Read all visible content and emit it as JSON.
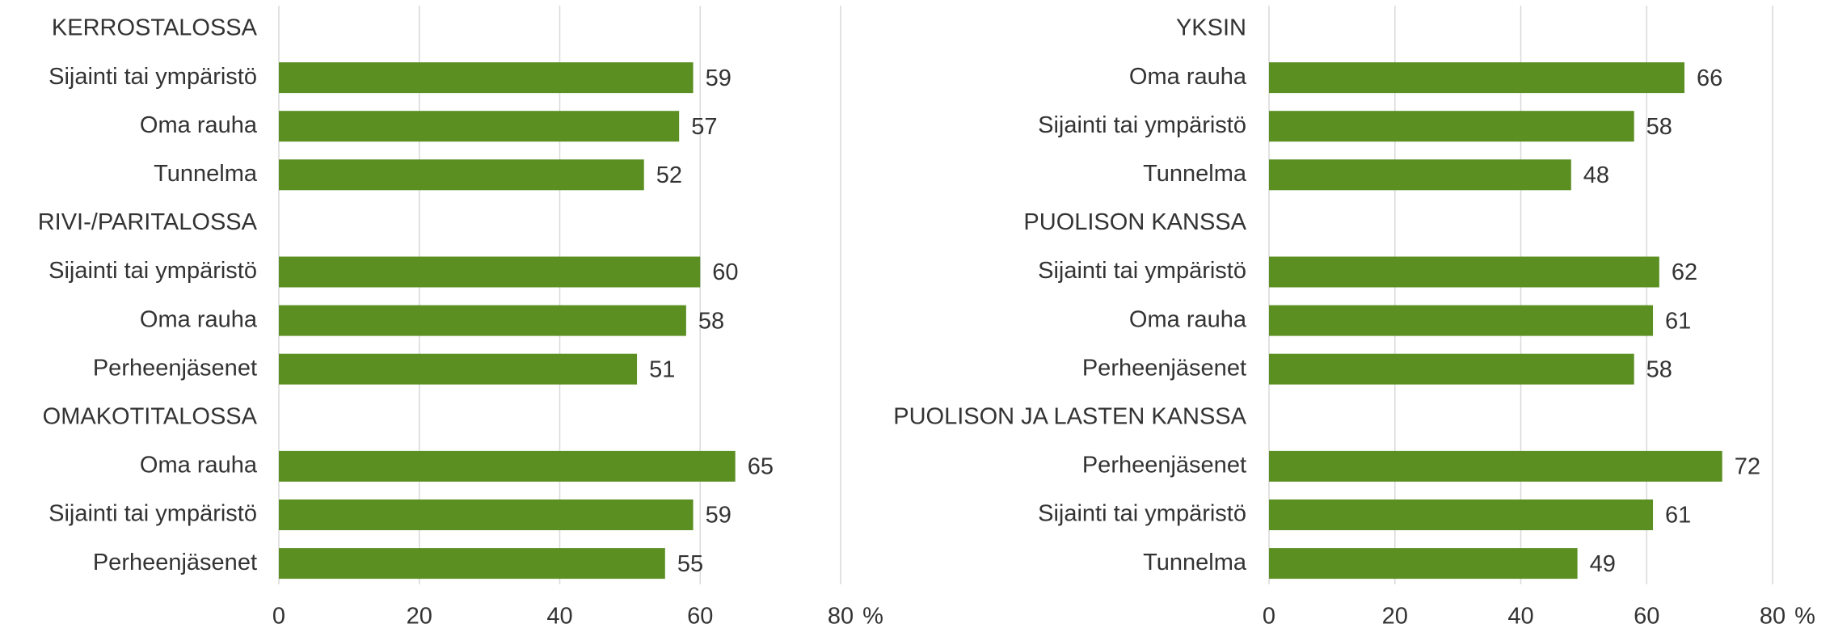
{
  "chart_data": [
    {
      "type": "barh",
      "categories": [
        "KERROSTALOSSA",
        "Sijainti tai ympäristö",
        "Oma rauha",
        "Tunnelma",
        "RIVI-/PARITALOSSA",
        "Sijainti tai ympäristö",
        "Oma rauha",
        "Perheenjäsenet",
        "OMAKOTITALOSSA",
        "Oma rauha",
        "Sijainti tai ympäristö",
        "Perheenjäsenet"
      ],
      "values": [
        null,
        59,
        57,
        52,
        null,
        60,
        58,
        51,
        null,
        65,
        59,
        55
      ],
      "color": "#5b8f22",
      "xlim": [
        0,
        80
      ],
      "xticks": [
        0,
        20,
        40,
        60,
        80
      ],
      "xlabel": "%",
      "grid": true
    },
    {
      "type": "barh",
      "categories": [
        "YKSIN",
        "Oma rauha",
        "Sijainti tai ympäristö",
        "Tunnelma",
        "PUOLISON KANSSA",
        "Sijainti tai ympäristö",
        "Oma rauha",
        "Perheenjäsenet",
        "PUOLISON JA LASTEN KANSSA",
        "Perheenjäsenet",
        "Sijainti tai ympäristö",
        "Tunnelma"
      ],
      "values": [
        null,
        66,
        58,
        48,
        null,
        62,
        61,
        58,
        null,
        72,
        61,
        49
      ],
      "color": "#5b8f22",
      "xlim": [
        0,
        80
      ],
      "xticks": [
        0,
        20,
        40,
        60,
        80
      ],
      "xlabel": "%",
      "grid": true
    }
  ]
}
